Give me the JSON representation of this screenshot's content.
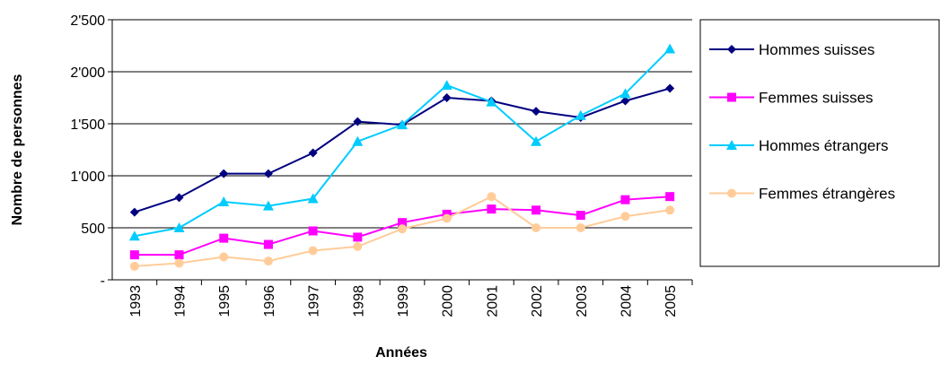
{
  "chart_data": {
    "type": "line",
    "x_label": "Années",
    "y_label": "Nombre de personnes",
    "categories": [
      "1993",
      "1994",
      "1995",
      "1996",
      "1997",
      "1998",
      "1999",
      "2000",
      "2001",
      "2002",
      "2003",
      "2004",
      "2005"
    ],
    "series": [
      {
        "name": "Hommes suisses",
        "color": "#000080",
        "marker": "diamond",
        "values": [
          650,
          790,
          1020,
          1020,
          1220,
          1520,
          1490,
          1750,
          1720,
          1620,
          1560,
          1720,
          1840
        ]
      },
      {
        "name": "Femmes suisses",
        "color": "#ff00ff",
        "marker": "square",
        "values": [
          240,
          240,
          400,
          340,
          470,
          410,
          550,
          630,
          680,
          670,
          620,
          770,
          800
        ]
      },
      {
        "name": "Hommes étrangers",
        "color": "#00ccff",
        "marker": "triangle",
        "values": [
          420,
          500,
          750,
          710,
          780,
          1330,
          1490,
          1870,
          1710,
          1330,
          1580,
          1790,
          2220
        ]
      },
      {
        "name": "Femmes étrangères",
        "color": "#ffcc99",
        "marker": "circle",
        "values": [
          130,
          160,
          220,
          180,
          280,
          320,
          490,
          590,
          800,
          500,
          500,
          610,
          670
        ]
      }
    ],
    "ylim": [
      0,
      2500
    ],
    "yticks": [
      {
        "value": 0,
        "label": "-"
      },
      500,
      {
        "value": 1000,
        "label": "1'000"
      },
      {
        "value": 1500,
        "label": "1'500"
      },
      {
        "value": 2000,
        "label": "2'000"
      },
      {
        "value": 2500,
        "label": "2'500"
      }
    ],
    "grid": true,
    "legend": "right"
  }
}
